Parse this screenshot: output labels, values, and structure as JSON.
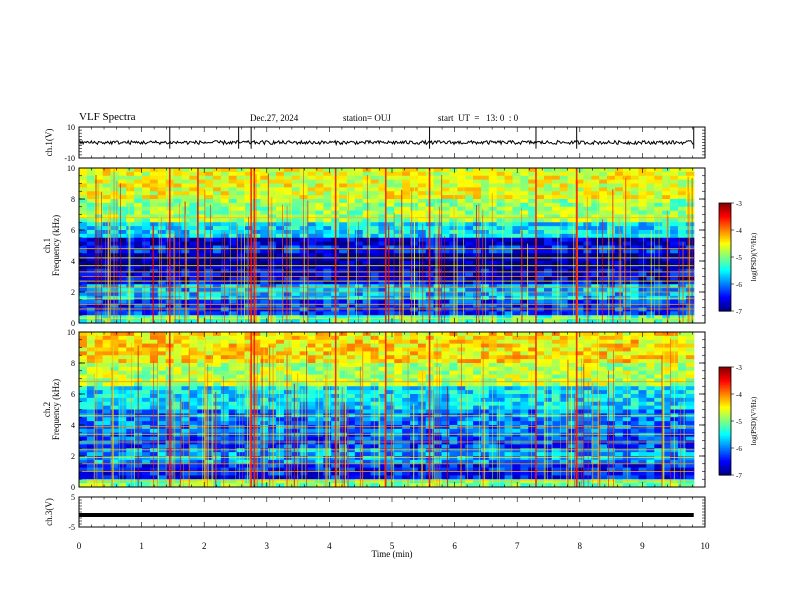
{
  "header": {
    "title": "VLF Spectra",
    "date": "Dec.27, 2024",
    "station": "station= OUJ",
    "start": "start  UT  =   13: 0  : 0"
  },
  "colorbar": {
    "label": "log(PSD)(V²/Hz)",
    "ticks": [
      "-3",
      "-4",
      "-5",
      "-6",
      "-7"
    ]
  },
  "chart_data": [
    {
      "type": "line",
      "name": "ch.1 waveform",
      "ylabel": "ch.1(V)",
      "ylim": [
        -10,
        10
      ],
      "yticks": [
        "10",
        "-10"
      ],
      "x_range": [
        0,
        9.82
      ],
      "baseline_v": 0,
      "spikes_min": [
        1.45,
        2.55,
        2.75,
        5.6,
        7.3,
        7.95,
        9.82
      ]
    },
    {
      "type": "heatmap",
      "name": "ch.1 spectrogram",
      "ylabel": "ch.1 Frequency (kHz)",
      "ylim": [
        0,
        10
      ],
      "yticks": [
        "0",
        "2",
        "4",
        "6",
        "8",
        "10"
      ],
      "x_range": [
        0,
        9.82
      ],
      "zlim": [
        -7,
        -3
      ],
      "bands": [
        {
          "f_from": 0,
          "f_to": 0.5,
          "level": -5.2
        },
        {
          "f_from": 0.5,
          "f_to": 1.5,
          "level": -6.3
        },
        {
          "f_from": 1.5,
          "f_to": 2.5,
          "level": -5.8
        },
        {
          "f_from": 2.5,
          "f_to": 3.5,
          "level": -6.6
        },
        {
          "f_from": 3.5,
          "f_to": 4.5,
          "level": -6.9
        },
        {
          "f_from": 4.5,
          "f_to": 5.0,
          "level": -6.4
        },
        {
          "f_from": 5.0,
          "f_to": 5.5,
          "level": -6.7
        },
        {
          "f_from": 5.5,
          "f_to": 6.5,
          "level": -5.6
        },
        {
          "f_from": 6.5,
          "f_to": 8.0,
          "level": -4.9
        },
        {
          "f_from": 8.0,
          "f_to": 10.0,
          "level": -4.6
        }
      ],
      "lines_khz": [
        0.3,
        0.9,
        1.2,
        1.6,
        2.0,
        2.3,
        2.7,
        3.0,
        3.3,
        3.7,
        4.2,
        4.8,
        6.8
      ],
      "events_min": [
        1.45,
        1.9,
        2.75,
        2.8,
        4.1,
        4.9,
        5.6,
        7.3,
        7.95
      ]
    },
    {
      "type": "heatmap",
      "name": "ch.2 spectrogram",
      "ylabel": "ch.2 Frequency (kHz)",
      "ylim": [
        0,
        10
      ],
      "yticks": [
        "0",
        "2",
        "4",
        "6",
        "8",
        "10"
      ],
      "x_range": [
        0,
        9.82
      ],
      "zlim": [
        -7,
        -3
      ],
      "bands": [
        {
          "f_from": 0,
          "f_to": 0.5,
          "level": -5.0
        },
        {
          "f_from": 0.5,
          "f_to": 1.5,
          "level": -6.4
        },
        {
          "f_from": 1.5,
          "f_to": 2.5,
          "level": -5.9
        },
        {
          "f_from": 2.5,
          "f_to": 3.5,
          "level": -6.2
        },
        {
          "f_from": 3.5,
          "f_to": 5.0,
          "level": -6.0
        },
        {
          "f_from": 5.0,
          "f_to": 6.5,
          "level": -5.6
        },
        {
          "f_from": 6.5,
          "f_to": 8.0,
          "level": -4.8
        },
        {
          "f_from": 8.0,
          "f_to": 10.0,
          "level": -4.4
        }
      ],
      "lines_khz": [
        0.4,
        1.0,
        1.5,
        1.9,
        2.4,
        2.9,
        3.4,
        3.9,
        4.6,
        6.8
      ],
      "events_min": [
        1.45,
        2.75,
        2.8,
        4.1,
        4.9,
        5.6,
        7.3,
        7.95
      ]
    },
    {
      "type": "line",
      "name": "ch.3 waveform",
      "ylabel": "ch.3(V)",
      "ylim": [
        -5,
        5
      ],
      "yticks": [
        "5",
        "-5"
      ],
      "x_range": [
        0,
        9.82
      ],
      "baseline_v": -1
    }
  ],
  "x_axis": {
    "label": "Time  (min)",
    "xlim": [
      0,
      10
    ],
    "ticks": [
      "0",
      "1",
      "2",
      "3",
      "4",
      "5",
      "6",
      "7",
      "8",
      "9",
      "10"
    ]
  }
}
